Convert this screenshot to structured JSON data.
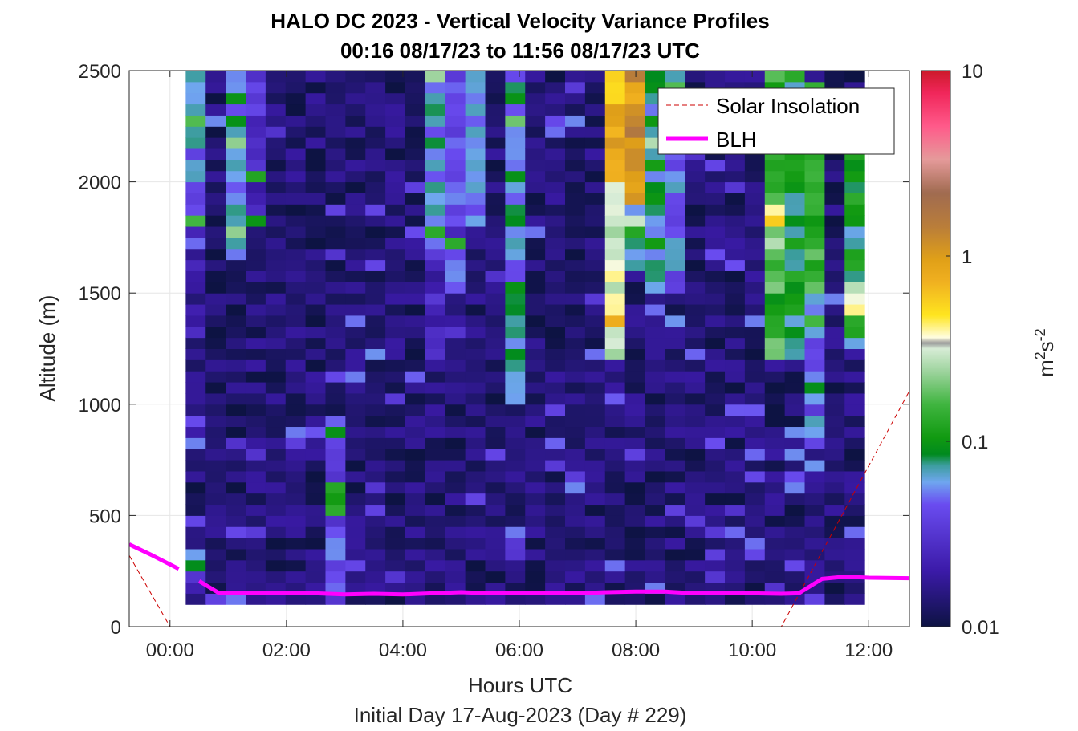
{
  "chart_data": {
    "type": "heatmap",
    "title": "HALO DC 2023 - Vertical Velocity Variance Profiles",
    "subtitle": "00:16 08/17/23 to 11:56 08/17/23  UTC",
    "xlabel": "Hours UTC",
    "xlabel2": "Initial Day 17-Aug-2023 (Day # 229)",
    "ylabel": "Altitude (m)",
    "colorbar_label_base": "m",
    "colorbar_label_exp1": "2",
    "colorbar_label_mid": "s",
    "colorbar_label_exp2": "-2",
    "colorbar_scale": "log",
    "colorbar_range": [
      0.01,
      10
    ],
    "colorbar_ticks": [
      {
        "value": 0.01,
        "label": "0.01"
      },
      {
        "value": 0.1,
        "label": "0.1"
      },
      {
        "value": 1,
        "label": "1"
      },
      {
        "value": 10,
        "label": "10"
      }
    ],
    "xlim_hours": [
      -0.7,
      12.7
    ],
    "ylim": [
      0,
      2500
    ],
    "x_ticks": [
      {
        "value": 0,
        "label": "00:00"
      },
      {
        "value": 2,
        "label": "02:00"
      },
      {
        "value": 4,
        "label": "04:00"
      },
      {
        "value": 6,
        "label": "06:00"
      },
      {
        "value": 8,
        "label": "08:00"
      },
      {
        "value": 10,
        "label": "10:00"
      },
      {
        "value": 12,
        "label": "12:00"
      }
    ],
    "y_ticks": [
      {
        "value": 0,
        "label": "0"
      },
      {
        "value": 500,
        "label": "500"
      },
      {
        "value": 1000,
        "label": "1000"
      },
      {
        "value": 1500,
        "label": "1500"
      },
      {
        "value": 2000,
        "label": "2000"
      },
      {
        "value": 2500,
        "label": "2500"
      }
    ],
    "grid": true,
    "legend_position": "top-right",
    "heatmap": {
      "time_start_hours": 0.27,
      "time_end_hours": 11.93,
      "n_time_bins": 34,
      "altitude_min": 100,
      "altitude_max": 2500,
      "n_altitude_bins": 48,
      "background_value": 0.012,
      "columns": [
        {
          "index": 0,
          "top_altitude": 2450,
          "variance_profile": [
            [
              1800,
              2500,
              0.06
            ],
            [
              1200,
              1800,
              0.02
            ],
            [
              300,
              1200,
              0.015
            ],
            [
              100,
              300,
              0.025
            ]
          ]
        },
        {
          "index": 2,
          "top_altitude": 2500,
          "variance_profile": [
            [
              1700,
              2500,
              0.07
            ],
            [
              600,
              1700,
              0.013
            ]
          ]
        },
        {
          "index": 3,
          "top_altitude": 2500,
          "variance_profile": [
            [
              1800,
              2500,
              0.03
            ]
          ]
        },
        {
          "index": 7,
          "top_altitude": 2500,
          "variance_profile": [
            [
              100,
              900,
              0.04
            ],
            [
              500,
              650,
              0.1
            ]
          ]
        },
        {
          "index": 12,
          "top_altitude": 2500,
          "variance_profile": [
            [
              1700,
              2500,
              0.06
            ],
            [
              1200,
              1700,
              0.025
            ]
          ]
        },
        {
          "index": 13,
          "top_altitude": 2500,
          "variance_profile": [
            [
              1500,
              2500,
              0.04
            ]
          ]
        },
        {
          "index": 14,
          "top_altitude": 2500,
          "variance_profile": [
            [
              1800,
              2500,
              0.05
            ]
          ]
        },
        {
          "index": 16,
          "top_altitude": 2500,
          "variance_profile": [
            [
              1000,
              2500,
              0.07
            ],
            [
              300,
              450,
              0.04
            ]
          ]
        },
        {
          "index": 21,
          "top_altitude": 2500,
          "variance_profile": [
            [
              1200,
              2500,
              0.3
            ],
            [
              2000,
              2500,
              0.8
            ]
          ]
        },
        {
          "index": 22,
          "top_altitude": 2500,
          "variance_profile": [
            [
              1600,
              2500,
              0.09
            ],
            [
              1900,
              2500,
              1.2
            ]
          ]
        },
        {
          "index": 23,
          "top_altitude": 2500,
          "variance_profile": [
            [
              1500,
              2500,
              0.08
            ]
          ]
        },
        {
          "index": 24,
          "top_altitude": 2500,
          "variance_profile": [
            [
              1500,
              2500,
              0.05
            ]
          ]
        },
        {
          "index": 29,
          "top_altitude": 2500,
          "variance_profile": [
            [
              1200,
              2500,
              0.15
            ],
            [
              1700,
              1900,
              0.3
            ]
          ]
        },
        {
          "index": 30,
          "top_altitude": 2500,
          "variance_profile": [
            [
              1200,
              2500,
              0.1
            ],
            [
              2500,
              2500,
              1
            ]
          ]
        },
        {
          "index": 31,
          "top_altitude": 2450,
          "variance_profile": [
            [
              1500,
              2450,
              0.15
            ],
            [
              800,
              1500,
              0.05
            ]
          ]
        },
        {
          "index": 33,
          "top_altitude": 2150,
          "variance_profile": [
            [
              1250,
              2150,
              0.1
            ]
          ]
        }
      ]
    },
    "series": [
      {
        "name": "Solar Insolation",
        "style": "dashed",
        "color": "#cc0000",
        "x": [
          -0.7,
          0.0,
          10.5,
          12.7
        ],
        "y": [
          320,
          0,
          0,
          1060
        ]
      },
      {
        "name": "BLH",
        "style": "solid",
        "color": "#ff00ff",
        "segments": [
          {
            "x": [
              -0.7,
              -0.3,
              0.15
            ],
            "y": [
              370,
              320,
              260
            ]
          },
          {
            "x": [
              0.5,
              0.85,
              1.5,
              2.5,
              3.0,
              3.5,
              4.0,
              4.5,
              5.0,
              5.5,
              6.0,
              6.5,
              7.0,
              7.5,
              8.0,
              8.5,
              9.0,
              9.5,
              10.0,
              10.5,
              10.8,
              11.2,
              11.6,
              12.0,
              12.7
            ],
            "y": [
              205,
              150,
              150,
              150,
              145,
              148,
              145,
              150,
              155,
              150,
              150,
              150,
              150,
              155,
              158,
              158,
              150,
              150,
              150,
              148,
              150,
              215,
              225,
              220,
              218
            ]
          }
        ]
      }
    ]
  },
  "colors": {
    "background": "#ffffff",
    "heatmap_background": "#0d1343",
    "grid": "#e6e6e6",
    "axis": "#262626",
    "blh": "#ff00ff",
    "solar": "#cc0000"
  }
}
